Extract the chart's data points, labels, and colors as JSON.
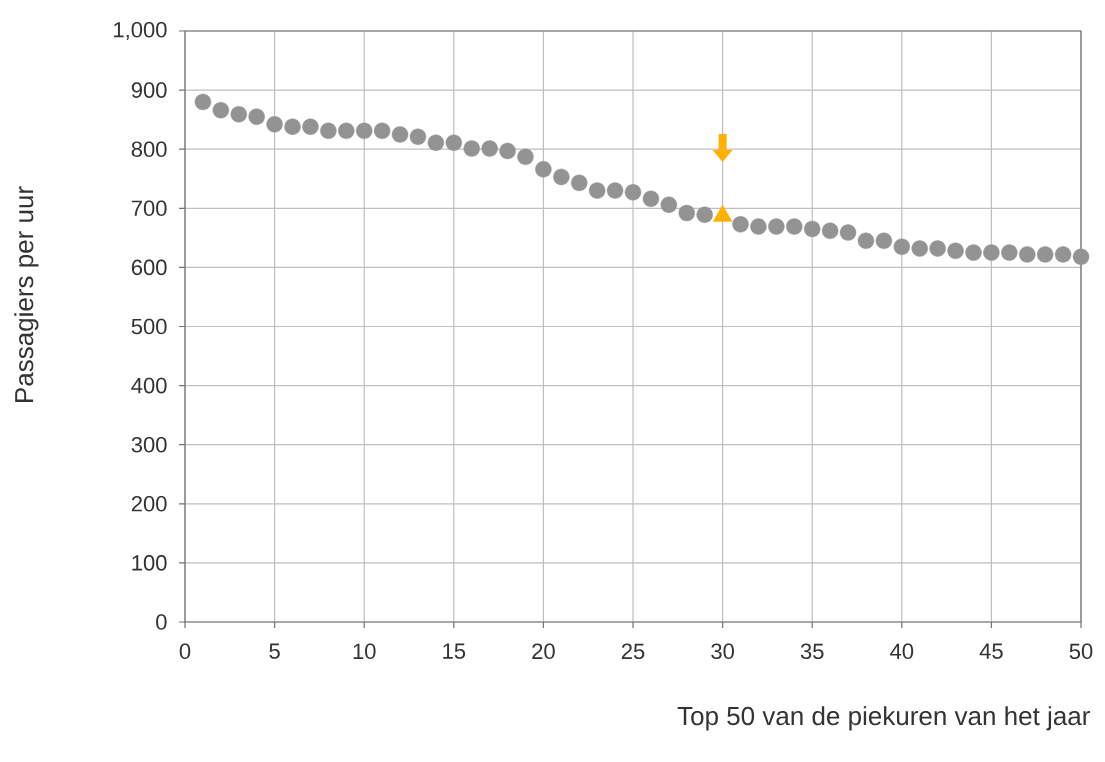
{
  "chart_data": {
    "type": "scatter",
    "xlabel": "Top 50 van de piekuren van het jaar",
    "ylabel": "Passagiers per uur",
    "x": [
      1,
      2,
      3,
      4,
      5,
      6,
      7,
      8,
      9,
      10,
      11,
      12,
      13,
      14,
      15,
      16,
      17,
      18,
      19,
      20,
      21,
      22,
      23,
      24,
      25,
      26,
      27,
      28,
      29,
      30,
      31,
      32,
      33,
      34,
      35,
      36,
      37,
      38,
      39,
      40,
      41,
      42,
      43,
      44,
      45,
      46,
      47,
      48,
      49,
      50
    ],
    "series": [
      {
        "color": "#939393",
        "marker": "circle",
        "values": [
          880,
          866,
          859,
          855,
          842,
          838,
          838,
          831,
          831,
          831,
          831,
          825,
          821,
          811,
          811,
          801,
          801,
          797,
          787,
          766,
          753,
          743,
          730,
          730,
          727,
          716,
          706,
          692,
          689,
          null,
          673,
          669,
          669,
          669,
          665,
          662,
          659,
          645,
          645,
          635,
          632,
          632,
          628,
          625,
          625,
          625,
          622,
          622,
          622,
          618
        ]
      },
      {
        "color": "#ffb000",
        "marker": "triangle",
        "values": [
          null,
          null,
          null,
          null,
          null,
          null,
          null,
          null,
          null,
          null,
          null,
          null,
          null,
          null,
          null,
          null,
          null,
          null,
          null,
          null,
          null,
          null,
          null,
          null,
          null,
          null,
          null,
          null,
          null,
          687,
          null,
          null,
          null,
          null,
          null,
          null,
          null,
          null,
          null,
          null,
          null,
          null,
          null,
          null,
          null,
          null,
          null,
          null,
          null,
          null
        ]
      }
    ],
    "xlim": [
      0,
      50
    ],
    "xticks": [
      0,
      5,
      10,
      15,
      20,
      25,
      30,
      35,
      40,
      45,
      50
    ],
    "ylim": [
      0,
      1000
    ],
    "yticks": [
      0,
      100,
      200,
      300,
      400,
      500,
      600,
      700,
      800,
      900,
      {
        "value": 1000,
        "label": "1,000"
      }
    ],
    "grid": true
  }
}
